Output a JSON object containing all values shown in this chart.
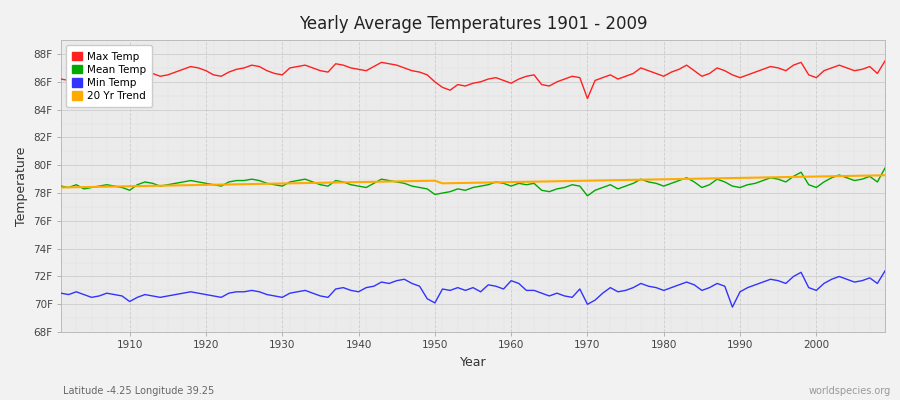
{
  "title": "Yearly Average Temperatures 1901 - 2009",
  "xlabel": "Year",
  "ylabel": "Temperature",
  "subtitle_left": "Latitude -4.25 Longitude 39.25",
  "subtitle_right": "worldspecies.org",
  "years": [
    1901,
    1902,
    1903,
    1904,
    1905,
    1906,
    1907,
    1908,
    1909,
    1910,
    1911,
    1912,
    1913,
    1914,
    1915,
    1916,
    1917,
    1918,
    1919,
    1920,
    1921,
    1922,
    1923,
    1924,
    1925,
    1926,
    1927,
    1928,
    1929,
    1930,
    1931,
    1932,
    1933,
    1934,
    1935,
    1936,
    1937,
    1938,
    1939,
    1940,
    1941,
    1942,
    1943,
    1944,
    1945,
    1946,
    1947,
    1948,
    1949,
    1950,
    1951,
    1952,
    1953,
    1954,
    1955,
    1956,
    1957,
    1958,
    1959,
    1960,
    1961,
    1962,
    1963,
    1964,
    1965,
    1966,
    1967,
    1968,
    1969,
    1970,
    1971,
    1972,
    1973,
    1974,
    1975,
    1976,
    1977,
    1978,
    1979,
    1980,
    1981,
    1982,
    1983,
    1984,
    1985,
    1986,
    1987,
    1988,
    1989,
    1990,
    1991,
    1992,
    1993,
    1994,
    1995,
    1996,
    1997,
    1998,
    1999,
    2000,
    2001,
    2002,
    2003,
    2004,
    2005,
    2006,
    2007,
    2008,
    2009
  ],
  "max_temp": [
    86.2,
    86.1,
    86.5,
    86.3,
    86.0,
    86.4,
    86.7,
    86.5,
    86.2,
    86.3,
    86.8,
    86.9,
    86.6,
    86.4,
    86.5,
    86.7,
    86.9,
    87.1,
    87.0,
    86.8,
    86.5,
    86.4,
    86.7,
    86.9,
    87.0,
    87.2,
    87.1,
    86.8,
    86.6,
    86.5,
    87.0,
    87.1,
    87.2,
    87.0,
    86.8,
    86.7,
    87.3,
    87.2,
    87.0,
    86.9,
    86.8,
    87.1,
    87.4,
    87.3,
    87.2,
    87.0,
    86.8,
    86.7,
    86.5,
    86.0,
    85.6,
    85.4,
    85.8,
    85.7,
    85.9,
    86.0,
    86.2,
    86.3,
    86.1,
    85.9,
    86.2,
    86.4,
    86.5,
    85.8,
    85.7,
    86.0,
    86.2,
    86.4,
    86.3,
    84.8,
    86.1,
    86.3,
    86.5,
    86.2,
    86.4,
    86.6,
    87.0,
    86.8,
    86.6,
    86.4,
    86.7,
    86.9,
    87.2,
    86.8,
    86.4,
    86.6,
    87.0,
    86.8,
    86.5,
    86.3,
    86.5,
    86.7,
    86.9,
    87.1,
    87.0,
    86.8,
    87.2,
    87.4,
    86.5,
    86.3,
    86.8,
    87.0,
    87.2,
    87.0,
    86.8,
    86.9,
    87.1,
    86.6,
    87.5
  ],
  "mean_temp": [
    78.5,
    78.4,
    78.6,
    78.3,
    78.4,
    78.5,
    78.6,
    78.5,
    78.4,
    78.2,
    78.6,
    78.8,
    78.7,
    78.5,
    78.6,
    78.7,
    78.8,
    78.9,
    78.8,
    78.7,
    78.6,
    78.5,
    78.8,
    78.9,
    78.9,
    79.0,
    78.9,
    78.7,
    78.6,
    78.5,
    78.8,
    78.9,
    79.0,
    78.8,
    78.6,
    78.5,
    78.9,
    78.8,
    78.6,
    78.5,
    78.4,
    78.7,
    79.0,
    78.9,
    78.8,
    78.7,
    78.5,
    78.4,
    78.3,
    77.9,
    78.0,
    78.1,
    78.3,
    78.2,
    78.4,
    78.5,
    78.6,
    78.8,
    78.7,
    78.5,
    78.7,
    78.6,
    78.7,
    78.2,
    78.1,
    78.3,
    78.4,
    78.6,
    78.5,
    77.8,
    78.2,
    78.4,
    78.6,
    78.3,
    78.5,
    78.7,
    79.0,
    78.8,
    78.7,
    78.5,
    78.7,
    78.9,
    79.1,
    78.8,
    78.4,
    78.6,
    79.0,
    78.8,
    78.5,
    78.4,
    78.6,
    78.7,
    78.9,
    79.1,
    79.0,
    78.8,
    79.2,
    79.5,
    78.6,
    78.4,
    78.8,
    79.1,
    79.3,
    79.1,
    78.9,
    79.0,
    79.2,
    78.8,
    79.8
  ],
  "min_temp": [
    70.8,
    70.7,
    70.9,
    70.7,
    70.5,
    70.6,
    70.8,
    70.7,
    70.6,
    70.2,
    70.5,
    70.7,
    70.6,
    70.5,
    70.6,
    70.7,
    70.8,
    70.9,
    70.8,
    70.7,
    70.6,
    70.5,
    70.8,
    70.9,
    70.9,
    71.0,
    70.9,
    70.7,
    70.6,
    70.5,
    70.8,
    70.9,
    71.0,
    70.8,
    70.6,
    70.5,
    71.1,
    71.2,
    71.0,
    70.9,
    71.2,
    71.3,
    71.6,
    71.5,
    71.7,
    71.8,
    71.5,
    71.3,
    70.4,
    70.1,
    71.1,
    71.0,
    71.2,
    71.0,
    71.2,
    70.9,
    71.4,
    71.3,
    71.1,
    71.7,
    71.5,
    71.0,
    71.0,
    70.8,
    70.6,
    70.8,
    70.6,
    70.5,
    71.1,
    70.0,
    70.3,
    70.8,
    71.2,
    70.9,
    71.0,
    71.2,
    71.5,
    71.3,
    71.2,
    71.0,
    71.2,
    71.4,
    71.6,
    71.4,
    71.0,
    71.2,
    71.5,
    71.3,
    69.8,
    70.9,
    71.2,
    71.4,
    71.6,
    71.8,
    71.7,
    71.5,
    72.0,
    72.3,
    71.2,
    71.0,
    71.5,
    71.8,
    72.0,
    71.8,
    71.6,
    71.7,
    71.9,
    71.5,
    72.4
  ],
  "trend_temp": [
    78.4,
    78.41,
    78.42,
    78.43,
    78.44,
    78.45,
    78.46,
    78.47,
    78.48,
    78.49,
    78.5,
    78.51,
    78.52,
    78.53,
    78.54,
    78.55,
    78.56,
    78.57,
    78.58,
    78.59,
    78.6,
    78.61,
    78.62,
    78.63,
    78.64,
    78.65,
    78.66,
    78.67,
    78.68,
    78.69,
    78.7,
    78.71,
    78.72,
    78.73,
    78.74,
    78.75,
    78.76,
    78.77,
    78.78,
    78.79,
    78.8,
    78.81,
    78.82,
    78.83,
    78.84,
    78.85,
    78.86,
    78.87,
    78.88,
    78.89,
    78.7,
    78.71,
    78.72,
    78.73,
    78.74,
    78.75,
    78.76,
    78.77,
    78.78,
    78.79,
    78.8,
    78.81,
    78.82,
    78.83,
    78.84,
    78.85,
    78.86,
    78.87,
    78.88,
    78.89,
    78.9,
    78.91,
    78.92,
    78.93,
    78.94,
    78.95,
    78.96,
    78.97,
    78.98,
    78.99,
    79.0,
    79.01,
    79.02,
    79.03,
    79.04,
    79.05,
    79.06,
    79.07,
    79.08,
    79.09,
    79.1,
    79.11,
    79.12,
    79.13,
    79.14,
    79.15,
    79.16,
    79.17,
    79.18,
    79.19,
    79.2,
    79.21,
    79.22,
    79.23,
    79.24,
    79.25,
    79.26,
    79.27,
    79.28
  ],
  "max_color": "#ff2020",
  "mean_color": "#00aa00",
  "min_color": "#3333ff",
  "trend_color": "#ffaa00",
  "bg_color": "#f2f2f2",
  "plot_bg_color": "#ebebeb",
  "grid_major_color": "#cccccc",
  "grid_minor_color": "#dddddd",
  "ylim": [
    68,
    89
  ],
  "yticks": [
    68,
    70,
    72,
    74,
    76,
    78,
    80,
    82,
    84,
    86,
    88
  ],
  "ytick_labels": [
    "68F",
    "70F",
    "72F",
    "74F",
    "76F",
    "78F",
    "80F",
    "82F",
    "84F",
    "86F",
    "88F"
  ],
  "xticks": [
    1910,
    1920,
    1930,
    1940,
    1950,
    1960,
    1970,
    1980,
    1990,
    2000
  ],
  "legend_labels": [
    "Max Temp",
    "Mean Temp",
    "Min Temp",
    "20 Yr Trend"
  ]
}
